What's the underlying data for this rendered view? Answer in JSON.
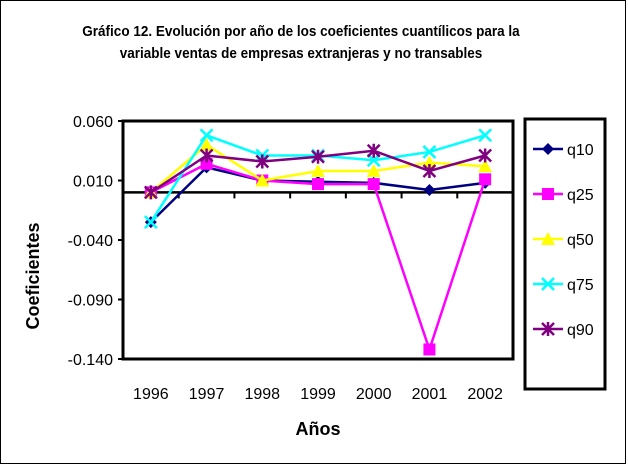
{
  "chart_data": {
    "type": "line",
    "title": "Gráfico 12. Evolución por año de los coeficientes cuantílicos para la variable ventas de empresas extranjeras y no transables",
    "xlabel": "Años",
    "ylabel": "Coeficientes",
    "categories": [
      "1996",
      "1997",
      "1998",
      "1999",
      "2000",
      "2001",
      "2002"
    ],
    "ylim": [
      -0.14,
      0.06
    ],
    "yticks": [
      "0.060",
      "0.010",
      "-0.040",
      "-0.090",
      "-0.140"
    ],
    "ytick_values": [
      0.06,
      0.01,
      -0.04,
      -0.09,
      -0.14
    ],
    "legend_position": "right",
    "series": [
      {
        "name": "q10",
        "color": "#000080",
        "marker": "diamond",
        "values": [
          -0.025,
          0.021,
          0.01,
          0.009,
          0.008,
          0.002,
          0.008
        ]
      },
      {
        "name": "q25",
        "color": "#ff00ff",
        "marker": "square",
        "values": [
          0.0,
          0.024,
          0.01,
          0.007,
          0.007,
          -0.132,
          0.011
        ]
      },
      {
        "name": "q50",
        "color": "#ffff00",
        "marker": "triangle",
        "values": [
          0.0,
          0.04,
          0.01,
          0.018,
          0.018,
          0.025,
          0.022
        ]
      },
      {
        "name": "q75",
        "color": "#00ffff",
        "marker": "x",
        "values": [
          -0.025,
          0.048,
          0.031,
          0.031,
          0.027,
          0.034,
          0.048
        ]
      },
      {
        "name": "q90",
        "color": "#800080",
        "marker": "star",
        "values": [
          0.0,
          0.031,
          0.026,
          0.03,
          0.035,
          0.018,
          0.031
        ]
      }
    ]
  }
}
